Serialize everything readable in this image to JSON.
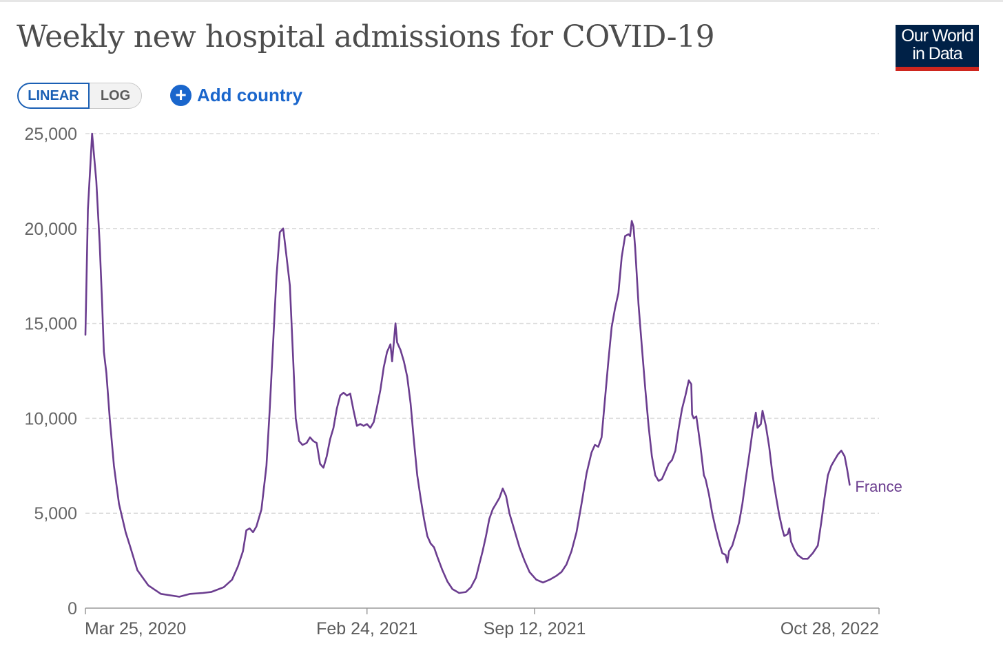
{
  "header": {
    "title": "Weekly new hospital admissions for COVID-19",
    "logo_line1": "Our World",
    "logo_line2": "in Data"
  },
  "controls": {
    "linear_label": "LINEAR",
    "log_label": "LOG",
    "add_country_label": "Add country",
    "selected_scale": "linear"
  },
  "colors": {
    "series": "#6b3d8f",
    "accent": "#1a66cc",
    "logo_bg": "#002147",
    "logo_bar": "#ce261e"
  },
  "chart_data": {
    "type": "line",
    "title": "Weekly new hospital admissions for COVID-19",
    "xlabel": "",
    "ylabel": "",
    "ylim": [
      0,
      25000
    ],
    "grid": true,
    "y_ticks": [
      {
        "value": 0,
        "label": "0"
      },
      {
        "value": 5000,
        "label": "5,000"
      },
      {
        "value": 10000,
        "label": "10,000"
      },
      {
        "value": 15000,
        "label": "15,000"
      },
      {
        "value": 20000,
        "label": "20,000"
      },
      {
        "value": 25000,
        "label": "25,000"
      }
    ],
    "x_range_days": [
      0,
      947
    ],
    "x_ticks": [
      {
        "day": 0,
        "label": "Mar 25, 2020"
      },
      {
        "day": 336,
        "label": "Feb 24, 2021"
      },
      {
        "day": 536,
        "label": "Sep 12, 2021"
      },
      {
        "day": 947,
        "label": "Oct 28, 2022"
      }
    ],
    "series": [
      {
        "name": "France",
        "points": [
          [
            0,
            14400
          ],
          [
            3,
            21000
          ],
          [
            8,
            25000
          ],
          [
            13,
            22500
          ],
          [
            17,
            19200
          ],
          [
            20,
            16000
          ],
          [
            22,
            13500
          ],
          [
            25,
            12400
          ],
          [
            29,
            10000
          ],
          [
            34,
            7500
          ],
          [
            40,
            5500
          ],
          [
            48,
            4000
          ],
          [
            53,
            3300
          ],
          [
            62,
            2000
          ],
          [
            75,
            1200
          ],
          [
            90,
            750
          ],
          [
            105,
            650
          ],
          [
            112,
            600
          ],
          [
            125,
            750
          ],
          [
            140,
            800
          ],
          [
            150,
            850
          ],
          [
            165,
            1100
          ],
          [
            175,
            1500
          ],
          [
            182,
            2200
          ],
          [
            188,
            3000
          ],
          [
            192,
            4100
          ],
          [
            196,
            4200
          ],
          [
            200,
            4000
          ],
          [
            204,
            4300
          ],
          [
            210,
            5200
          ],
          [
            216,
            7500
          ],
          [
            220,
            10500
          ],
          [
            224,
            14000
          ],
          [
            228,
            17500
          ],
          [
            232,
            19800
          ],
          [
            236,
            20000
          ],
          [
            240,
            18500
          ],
          [
            244,
            17000
          ],
          [
            248,
            13000
          ],
          [
            251,
            10000
          ],
          [
            255,
            8800
          ],
          [
            259,
            8600
          ],
          [
            264,
            8700
          ],
          [
            268,
            9000
          ],
          [
            272,
            8800
          ],
          [
            276,
            8700
          ],
          [
            280,
            7600
          ],
          [
            284,
            7400
          ],
          [
            288,
            8000
          ],
          [
            292,
            8900
          ],
          [
            296,
            9500
          ],
          [
            300,
            10500
          ],
          [
            304,
            11200
          ],
          [
            308,
            11350
          ],
          [
            312,
            11200
          ],
          [
            316,
            11300
          ],
          [
            320,
            10400
          ],
          [
            324,
            9600
          ],
          [
            328,
            9700
          ],
          [
            332,
            9600
          ],
          [
            336,
            9700
          ],
          [
            340,
            9500
          ],
          [
            344,
            9800
          ],
          [
            348,
            10600
          ],
          [
            352,
            11500
          ],
          [
            356,
            12700
          ],
          [
            360,
            13500
          ],
          [
            364,
            13900
          ],
          [
            366,
            13000
          ],
          [
            368,
            14000
          ],
          [
            370,
            15000
          ],
          [
            372,
            14000
          ],
          [
            376,
            13600
          ],
          [
            380,
            13000
          ],
          [
            384,
            12200
          ],
          [
            388,
            10800
          ],
          [
            392,
            8800
          ],
          [
            396,
            7000
          ],
          [
            400,
            5800
          ],
          [
            404,
            4700
          ],
          [
            408,
            3800
          ],
          [
            412,
            3400
          ],
          [
            416,
            3200
          ],
          [
            420,
            2700
          ],
          [
            426,
            2000
          ],
          [
            432,
            1400
          ],
          [
            438,
            1000
          ],
          [
            446,
            800
          ],
          [
            454,
            850
          ],
          [
            460,
            1100
          ],
          [
            466,
            1600
          ],
          [
            470,
            2300
          ],
          [
            474,
            3000
          ],
          [
            478,
            3800
          ],
          [
            482,
            4700
          ],
          [
            486,
            5200
          ],
          [
            490,
            5500
          ],
          [
            494,
            5800
          ],
          [
            498,
            6300
          ],
          [
            502,
            5900
          ],
          [
            506,
            5000
          ],
          [
            512,
            4100
          ],
          [
            518,
            3200
          ],
          [
            524,
            2500
          ],
          [
            530,
            1900
          ],
          [
            538,
            1500
          ],
          [
            546,
            1350
          ],
          [
            554,
            1500
          ],
          [
            562,
            1700
          ],
          [
            568,
            1900
          ],
          [
            574,
            2300
          ],
          [
            580,
            3000
          ],
          [
            586,
            4000
          ],
          [
            592,
            5500
          ],
          [
            598,
            7100
          ],
          [
            604,
            8200
          ],
          [
            608,
            8600
          ],
          [
            612,
            8500
          ],
          [
            616,
            9000
          ],
          [
            620,
            11000
          ],
          [
            624,
            13000
          ],
          [
            628,
            14800
          ],
          [
            632,
            15800
          ],
          [
            636,
            16600
          ],
          [
            640,
            18500
          ],
          [
            644,
            19600
          ],
          [
            648,
            19700
          ],
          [
            650,
            19600
          ],
          [
            652,
            20400
          ],
          [
            654,
            20100
          ],
          [
            656,
            19000
          ],
          [
            660,
            16000
          ],
          [
            664,
            13800
          ],
          [
            668,
            11600
          ],
          [
            672,
            9600
          ],
          [
            676,
            8000
          ],
          [
            680,
            7000
          ],
          [
            684,
            6700
          ],
          [
            688,
            6800
          ],
          [
            692,
            7200
          ],
          [
            696,
            7600
          ],
          [
            700,
            7800
          ],
          [
            704,
            8300
          ],
          [
            708,
            9500
          ],
          [
            712,
            10500
          ],
          [
            716,
            11200
          ],
          [
            720,
            12000
          ],
          [
            723,
            11800
          ],
          [
            724,
            10200
          ],
          [
            726,
            10000
          ],
          [
            729,
            10100
          ],
          [
            731,
            9500
          ],
          [
            734,
            8500
          ],
          [
            738,
            7000
          ],
          [
            740,
            6800
          ],
          [
            744,
            6000
          ],
          [
            748,
            5000
          ],
          [
            752,
            4200
          ],
          [
            756,
            3500
          ],
          [
            760,
            2900
          ],
          [
            764,
            2800
          ],
          [
            766,
            2400
          ],
          [
            768,
            3000
          ],
          [
            772,
            3300
          ],
          [
            776,
            3900
          ],
          [
            780,
            4500
          ],
          [
            784,
            5500
          ],
          [
            788,
            6800
          ],
          [
            792,
            8000
          ],
          [
            796,
            9300
          ],
          [
            800,
            10300
          ],
          [
            802,
            9500
          ],
          [
            806,
            9700
          ],
          [
            808,
            10400
          ],
          [
            812,
            9600
          ],
          [
            816,
            8500
          ],
          [
            820,
            7000
          ],
          [
            824,
            5900
          ],
          [
            828,
            4900
          ],
          [
            832,
            4100
          ],
          [
            834,
            3800
          ],
          [
            838,
            3900
          ],
          [
            840,
            4200
          ],
          [
            842,
            3500
          ],
          [
            846,
            3100
          ],
          [
            850,
            2800
          ],
          [
            856,
            2600
          ],
          [
            862,
            2600
          ],
          [
            868,
            2900
          ],
          [
            874,
            3300
          ],
          [
            878,
            4500
          ],
          [
            882,
            5800
          ],
          [
            886,
            7000
          ],
          [
            890,
            7500
          ],
          [
            894,
            7800
          ],
          [
            898,
            8100
          ],
          [
            902,
            8300
          ],
          [
            906,
            8000
          ],
          [
            909,
            7300
          ],
          [
            912,
            6500
          ]
        ]
      }
    ]
  }
}
